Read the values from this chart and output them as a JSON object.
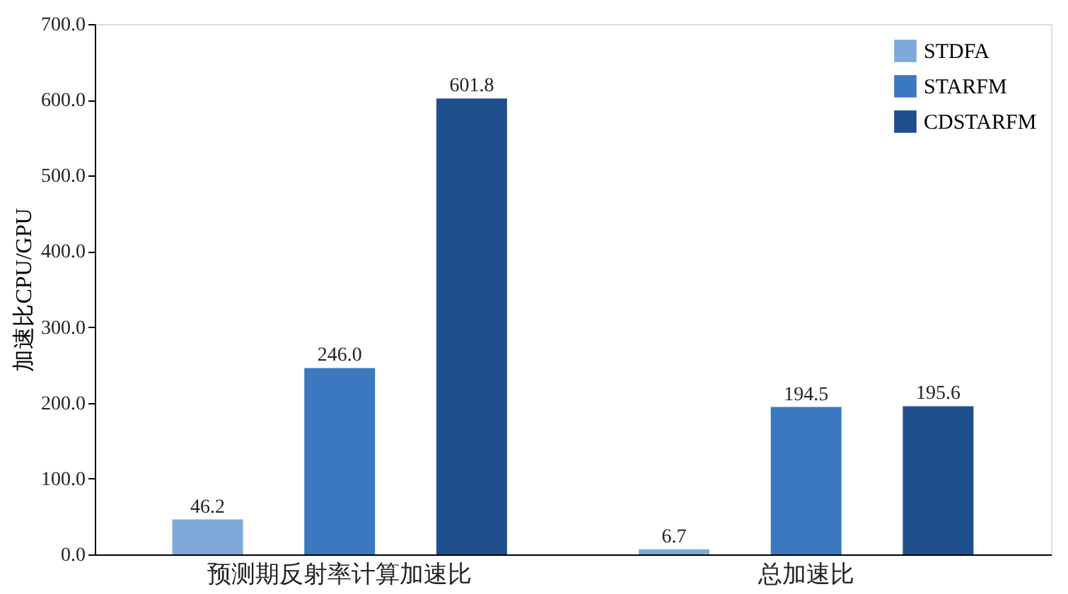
{
  "chart_data": {
    "type": "bar",
    "ylabel": "加速比CPU/GPU",
    "categories": [
      "预测期反射率计算加速比",
      "总加速比"
    ],
    "series": [
      {
        "name": "STDFA",
        "color": "#7fa9d9",
        "values": [
          46.2,
          6.7
        ],
        "value_labels": [
          "46.2",
          "6.7"
        ]
      },
      {
        "name": "STARFM",
        "color": "#3b78c0",
        "values": [
          246.0,
          194.5
        ],
        "value_labels": [
          "246.0",
          "194.5"
        ]
      },
      {
        "name": "CDSTARFM",
        "color": "#1f4e8c",
        "values": [
          601.8,
          195.6
        ],
        "value_labels": [
          "601.8",
          "195.6"
        ]
      }
    ],
    "ylim": [
      0,
      700
    ],
    "yticks": [
      {
        "value": 0,
        "label": "0.0"
      },
      {
        "value": 100,
        "label": "100.0"
      },
      {
        "value": 200,
        "label": "200.0"
      },
      {
        "value": 300,
        "label": "300.0"
      },
      {
        "value": 400,
        "label": "400.0"
      },
      {
        "value": 500,
        "label": "500.0"
      },
      {
        "value": 600,
        "label": "600.0"
      },
      {
        "value": 700,
        "label": "700.0"
      }
    ],
    "grid": false,
    "legend": "top right"
  }
}
